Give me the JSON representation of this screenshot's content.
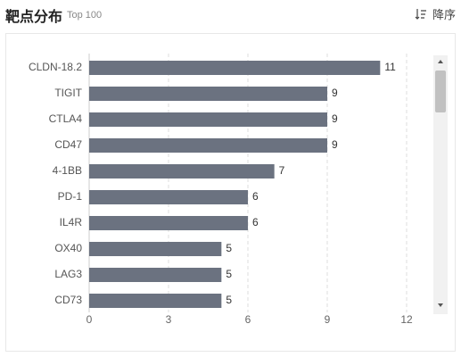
{
  "header": {
    "title": "靶点分布",
    "subtitle": "Top 100",
    "sort_label": "降序",
    "sort_icon": "sort-descending-icon"
  },
  "colors": {
    "bar": "#6b7280",
    "grid": "#dddddd",
    "scrollbar_track": "#f1f1f1",
    "scrollbar_thumb": "#c1c1c1"
  },
  "chart_data": {
    "type": "bar",
    "orientation": "horizontal",
    "categories": [
      "CLDN-18.2",
      "TIGIT",
      "CTLA4",
      "CD47",
      "4-1BB",
      "PD-1",
      "IL4R",
      "OX40",
      "LAG3",
      "CD73"
    ],
    "values": [
      11,
      9,
      9,
      9,
      7,
      6,
      6,
      5,
      5,
      5
    ],
    "xlim": [
      0,
      12
    ],
    "xticks": [
      0,
      3,
      6,
      9,
      12
    ],
    "grid": true,
    "data_labels": true,
    "title": "",
    "xlabel": "",
    "ylabel": ""
  }
}
